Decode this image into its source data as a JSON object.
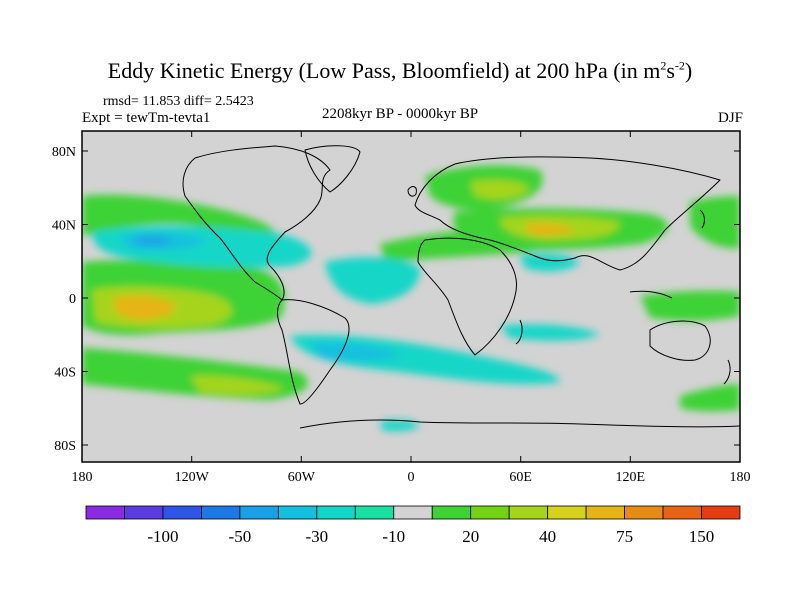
{
  "title": {
    "main": "Eddy Kinetic Energy (Low Pass, Bloomfield) at 200 hPa (in m",
    "sup1": "2",
    "mid": "s",
    "sup2": "-2",
    "end": ")"
  },
  "stats": "rmsd= 11.853 diff= 2.5423",
  "experiment": "Expt = tewTm-tevta1",
  "period": "2208kyr BP - 0000kyr BP",
  "season": "DJF",
  "map": {
    "x_ticks": [
      "180",
      "120W",
      "60W",
      "0",
      "60E",
      "120E",
      "180"
    ],
    "y_ticks": [
      "80N",
      "40N",
      "0",
      "40S",
      "80S"
    ],
    "land_mask_color": "#d3d3d3",
    "coastline_color": "#000000"
  },
  "colorbar": {
    "colors": [
      "#8a2be2",
      "#5a3ce0",
      "#2f55e6",
      "#1e78e6",
      "#1aa0e6",
      "#14c0e0",
      "#12d6c8",
      "#18e0a0",
      "#d3d3d3",
      "#3ed234",
      "#72d214",
      "#a6d41a",
      "#d4d21c",
      "#e6b414",
      "#e68c14",
      "#e66414",
      "#e63c14"
    ],
    "labels": [
      "-100",
      "-50",
      "-30",
      "-10",
      "20",
      "40",
      "75",
      "150"
    ]
  },
  "chart_data": {
    "type": "heatmap",
    "title": "Eddy Kinetic Energy (Low Pass, Bloomfield) at 200 hPa (in m^2s^-2)",
    "variable": "Eddy Kinetic Energy difference",
    "units": "m^2 s^-2",
    "level": "200 hPa",
    "season": "DJF",
    "period": "2208kyr BP - 0000kyr BP",
    "rmsd": 11.853,
    "diff": 2.5423,
    "x_range": [
      -180,
      180
    ],
    "y_range": [
      -90,
      90
    ],
    "contour_levels_labeled": [
      -100,
      -50,
      -30,
      -10,
      20,
      40,
      75,
      150
    ],
    "anomaly_regions": [
      {
        "lon_range": [
          -180,
          -120
        ],
        "lat_range": [
          -10,
          10
        ],
        "max_value": 40,
        "sign": "positive"
      },
      {
        "lon_range": [
          -150,
          -70
        ],
        "lat_range": [
          25,
          45
        ],
        "min_value": -30,
        "sign": "negative"
      },
      {
        "lon_range": [
          0,
          110
        ],
        "lat_range": [
          30,
          50
        ],
        "max_value": 40,
        "sign": "positive"
      },
      {
        "lon_range": [
          -30,
          90
        ],
        "lat_range": [
          -40,
          -25
        ],
        "min_value": -30,
        "sign": "negative"
      },
      {
        "lon_range": [
          -180,
          -70
        ],
        "lat_range": [
          -50,
          -35
        ],
        "max_value": 20,
        "sign": "positive"
      },
      {
        "lon_range": [
          0,
          60
        ],
        "lat_range": [
          55,
          70
        ],
        "max_value": 20,
        "sign": "positive"
      }
    ]
  }
}
